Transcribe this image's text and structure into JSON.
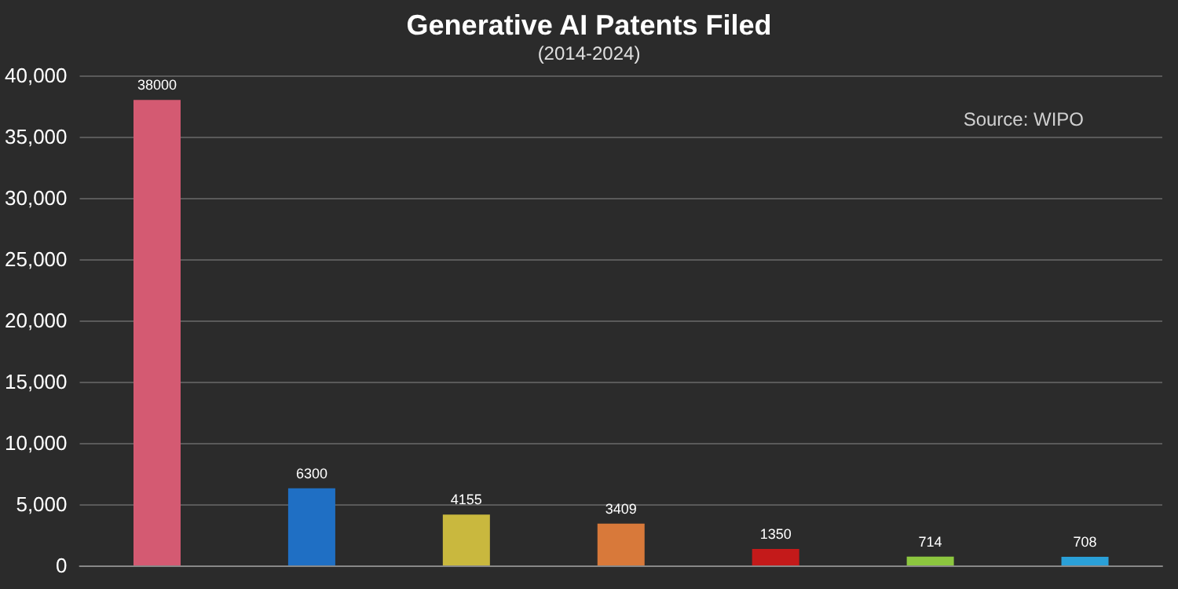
{
  "chart_data": {
    "type": "bar",
    "title": "Generative AI Patents Filed",
    "subtitle": "(2014-2024)",
    "annotations": [
      "Source: WIPO"
    ],
    "categories": [
      null,
      null,
      null,
      null,
      null,
      null,
      null
    ],
    "values": [
      38000,
      6300,
      4155,
      3409,
      1350,
      714,
      708
    ],
    "colors": [
      "#d45a72",
      "#1f6fc4",
      "#c9b83e",
      "#d8793a",
      "#c41a1a",
      "#8cc63f",
      "#2aa0d8"
    ],
    "ylim": [
      0,
      40000
    ],
    "yticks": [
      0,
      {
        "value": 5000,
        "label": "5,000"
      },
      {
        "value": 10000,
        "label": "10,000"
      },
      {
        "value": 15000,
        "label": "15,000"
      },
      {
        "value": 20000,
        "label": "20,000"
      },
      {
        "value": 25000,
        "label": "25,000"
      },
      {
        "value": 30000,
        "label": "30,000"
      },
      {
        "value": 35000,
        "label": "35,000"
      },
      {
        "value": 40000,
        "label": "40,000"
      }
    ],
    "grid": "y",
    "data_labels": true
  }
}
